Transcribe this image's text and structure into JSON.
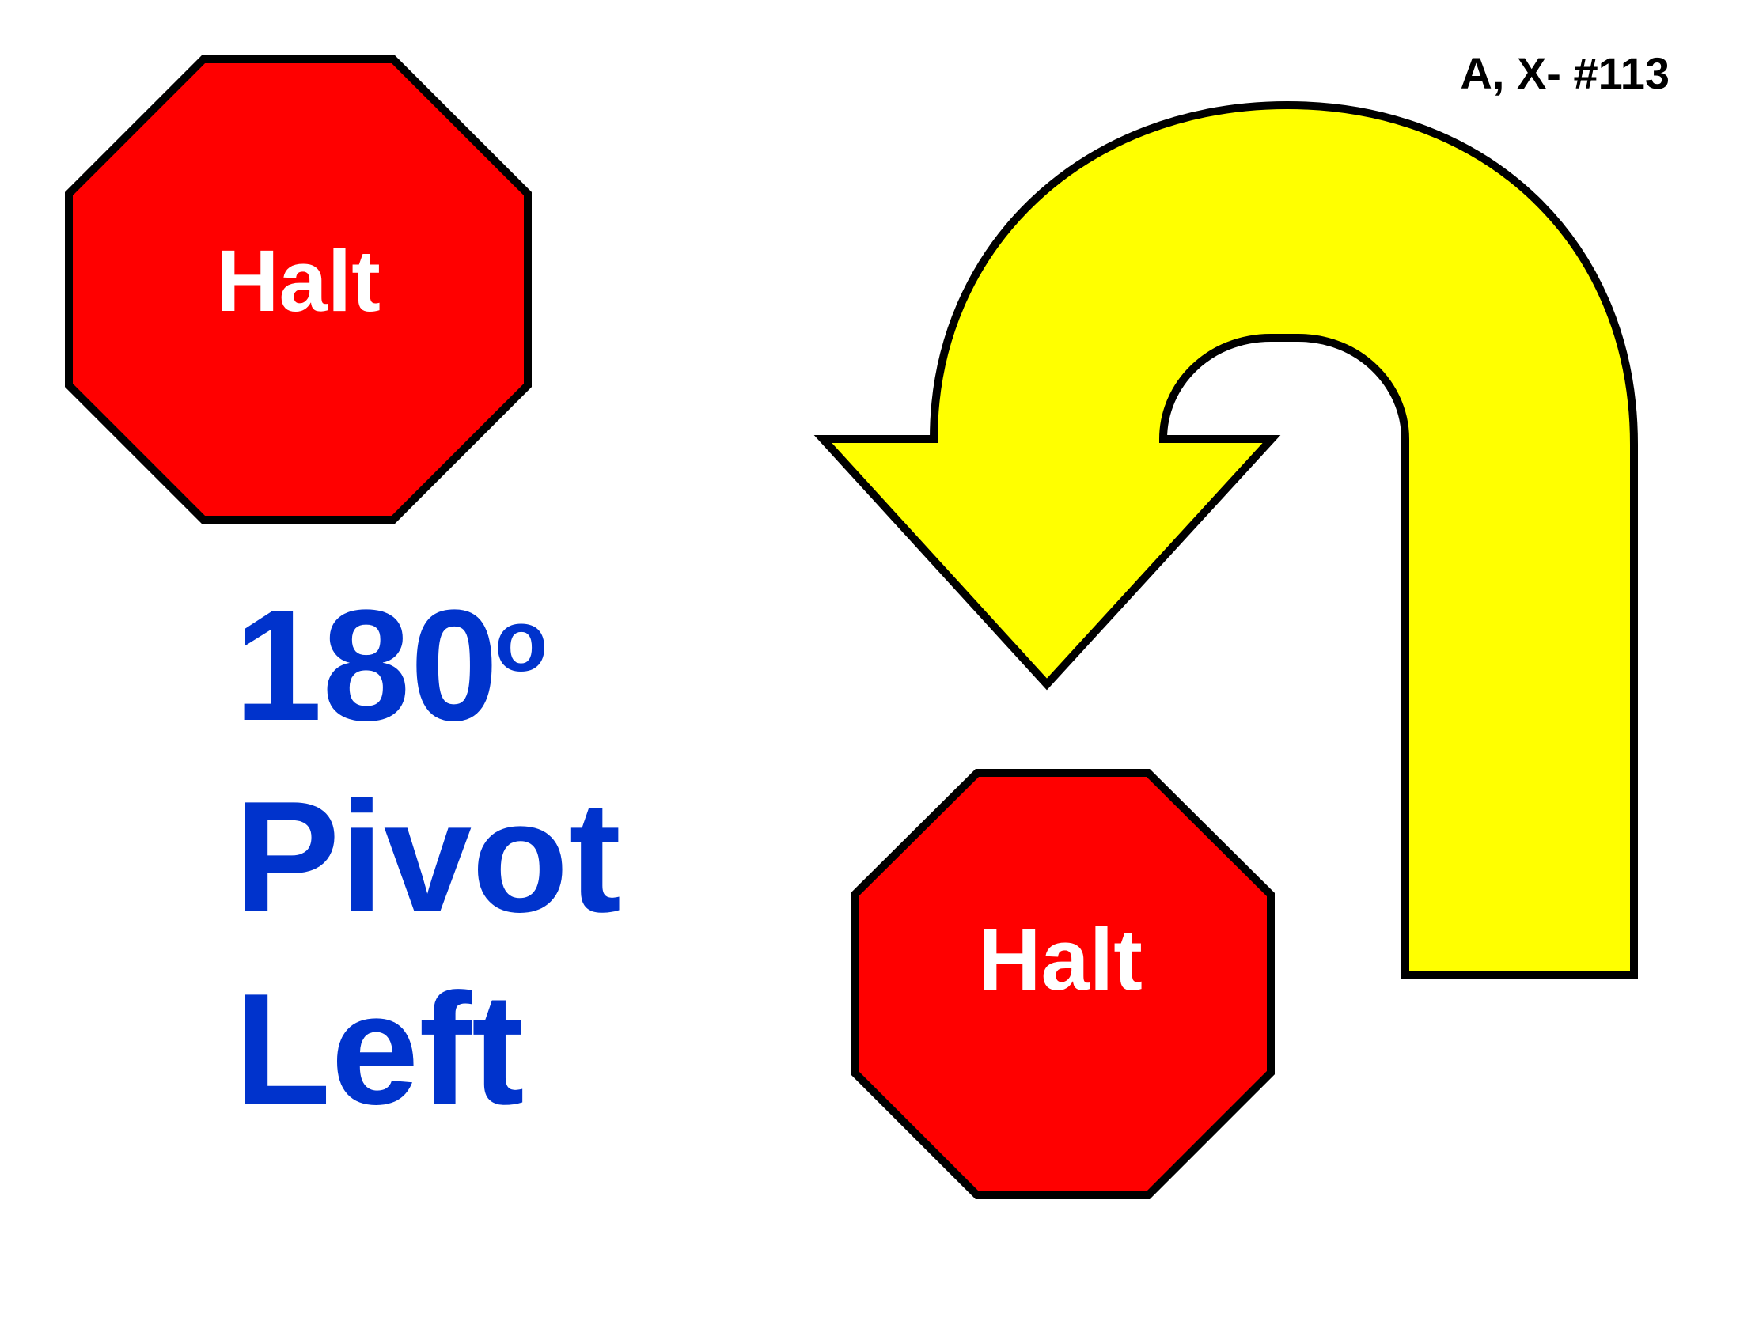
{
  "sign": {
    "id_label": "A, X- #113",
    "title": {
      "angle": "180",
      "degree_symbol": "o",
      "word1": "Pivot",
      "word2": "Left"
    },
    "halt_signs": [
      {
        "label": "Halt"
      },
      {
        "label": "Halt"
      }
    ]
  },
  "colors": {
    "background": "#ffffff",
    "halt_fill": "#ff0000",
    "halt_text": "#ffffff",
    "outline": "#000000",
    "arrow_fill": "#ffff00",
    "title_text": "#0033cc",
    "id_text": "#000000"
  },
  "icons": {
    "halt_sign": "octagon-stop-icon",
    "turn": "u-turn-arrow-icon"
  }
}
